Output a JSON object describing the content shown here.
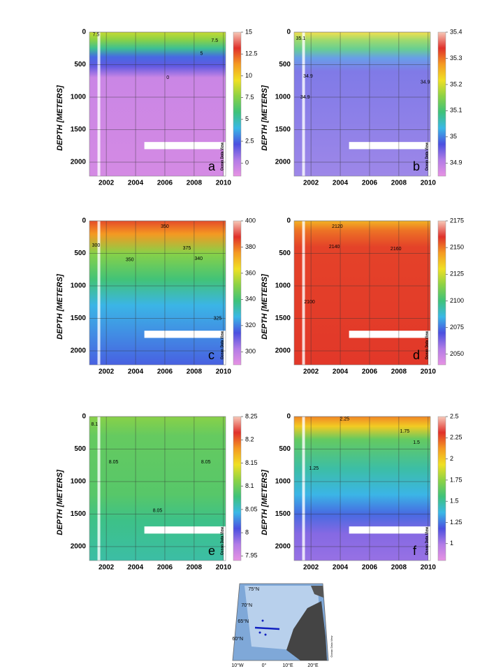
{
  "colormap": [
    "#e792e3",
    "#b27ce6",
    "#4b50e0",
    "#3ab8e6",
    "#3ec27a",
    "#8cd245",
    "#f0e024",
    "#f59a22",
    "#e0302a",
    "#f7c8b8"
  ],
  "chart_data": [
    {
      "type": "contour",
      "panel_label": "a",
      "y_label": "DEPTH [METERS]",
      "watermark": "Ocean Data View",
      "xlim": [
        2000.85,
        2010.15
      ],
      "xticks": [
        2002,
        2004,
        2006,
        2008,
        2010
      ],
      "ylim": [
        0,
        2215
      ],
      "yticks": [
        0,
        500,
        1000,
        1500,
        2000
      ],
      "grid": true,
      "clim": [
        -1.5,
        15
      ],
      "cticks": [
        0,
        2.5,
        5,
        7.5,
        10,
        12.5,
        15
      ],
      "annotations": [
        {
          "text": "7.5",
          "x": 2001.3,
          "y": 40
        },
        {
          "text": "7.5",
          "x": 2009.4,
          "y": 130
        },
        {
          "text": "5",
          "x": 2008.5,
          "y": 330
        },
        {
          "text": "0",
          "x": 2006.2,
          "y": 700
        }
      ]
    },
    {
      "type": "contour",
      "panel_label": "b",
      "y_label": "DEPTH [METERS]",
      "watermark": "Ocean Data View",
      "xlim": [
        2000.85,
        2010.15
      ],
      "xticks": [
        2002,
        2004,
        2006,
        2008,
        2010
      ],
      "ylim": [
        0,
        2215
      ],
      "yticks": [
        0,
        500,
        1000,
        1500,
        2000
      ],
      "grid": true,
      "clim": [
        34.85,
        35.4
      ],
      "cticks": [
        34.9,
        35,
        35.1,
        35.2,
        35.3,
        35.4
      ],
      "annotations": [
        {
          "text": "35.1",
          "x": 2001.3,
          "y": 100
        },
        {
          "text": "34.9",
          "x": 2001.8,
          "y": 680
        },
        {
          "text": "34.9",
          "x": 2001.6,
          "y": 1000
        },
        {
          "text": "34.9",
          "x": 2009.8,
          "y": 770
        }
      ]
    },
    {
      "type": "contour",
      "panel_label": "c",
      "y_label": "DEPTH [METERS]",
      "watermark": "Ocean Data View",
      "xlim": [
        2000.85,
        2010.15
      ],
      "xticks": [
        2002,
        2004,
        2006,
        2008,
        2010
      ],
      "ylim": [
        0,
        2215
      ],
      "yticks": [
        0,
        500,
        1000,
        1500,
        2000
      ],
      "grid": true,
      "clim": [
        290,
        400
      ],
      "cticks": [
        300,
        320,
        340,
        360,
        380,
        400
      ],
      "annotations": [
        {
          "text": "300",
          "x": 2001.3,
          "y": 380
        },
        {
          "text": "350",
          "x": 2006.0,
          "y": 90
        },
        {
          "text": "375",
          "x": 2007.5,
          "y": 420
        },
        {
          "text": "350",
          "x": 2003.6,
          "y": 600
        },
        {
          "text": "340",
          "x": 2008.3,
          "y": 580
        },
        {
          "text": "325",
          "x": 2009.6,
          "y": 1500
        }
      ]
    },
    {
      "type": "contour",
      "panel_label": "d",
      "y_label": "DEPTH [METERS]",
      "watermark": "Ocean Data View",
      "xlim": [
        2000.85,
        2010.15
      ],
      "xticks": [
        2002,
        2004,
        2006,
        2008,
        2010
      ],
      "ylim": [
        0,
        2215
      ],
      "yticks": [
        0,
        500,
        1000,
        1500,
        2000
      ],
      "grid": true,
      "clim": [
        2040,
        2175
      ],
      "cticks": [
        2050,
        2075,
        2100,
        2125,
        2150,
        2175
      ],
      "annotations": [
        {
          "text": "2120",
          "x": 2003.8,
          "y": 90
        },
        {
          "text": "2140",
          "x": 2003.6,
          "y": 400
        },
        {
          "text": "2160",
          "x": 2007.8,
          "y": 430
        },
        {
          "text": "2100",
          "x": 2001.9,
          "y": 1250
        }
      ]
    },
    {
      "type": "contour",
      "panel_label": "e",
      "y_label": "DEPTH [METERS]",
      "watermark": "Ocean Data View",
      "xlim": [
        2000.85,
        2010.15
      ],
      "xticks": [
        2002,
        2004,
        2006,
        2008,
        2010
      ],
      "ylim": [
        0,
        2215
      ],
      "yticks": [
        0,
        500,
        1000,
        1500,
        2000
      ],
      "grid": true,
      "clim": [
        7.94,
        8.25
      ],
      "cticks": [
        7.95,
        8,
        8.05,
        8.1,
        8.15,
        8.2,
        8.25
      ],
      "annotations": [
        {
          "text": "8.1",
          "x": 2001.2,
          "y": 120
        },
        {
          "text": "8.05",
          "x": 2002.5,
          "y": 700
        },
        {
          "text": "8.05",
          "x": 2005.5,
          "y": 1450
        },
        {
          "text": "8.05",
          "x": 2008.8,
          "y": 700
        }
      ]
    },
    {
      "type": "contour",
      "panel_label": "f",
      "y_label": "DEPTH [METERS]",
      "watermark": "Ocean Data View",
      "xlim": [
        2000.85,
        2010.15
      ],
      "xticks": [
        2002,
        2004,
        2006,
        2008,
        2010
      ],
      "ylim": [
        0,
        2215
      ],
      "yticks": [
        0,
        500,
        1000,
        1500,
        2000
      ],
      "grid": true,
      "clim": [
        0.8,
        2.5
      ],
      "cticks": [
        1,
        1.25,
        1.5,
        1.75,
        2,
        2.25,
        2.5
      ],
      "annotations": [
        {
          "text": "2.25",
          "x": 2004.3,
          "y": 40
        },
        {
          "text": "1.75",
          "x": 2008.4,
          "y": 230
        },
        {
          "text": "1.5",
          "x": 2009.2,
          "y": 400
        },
        {
          "text": "1.25",
          "x": 2002.2,
          "y": 800
        }
      ]
    }
  ],
  "map": {
    "lat_labels": [
      "75°N",
      "70°N",
      "65°N",
      "60°N"
    ],
    "lon_labels": [
      "10°W",
      "0°",
      "10°E",
      "20°E"
    ],
    "watermark": "Ocean Data View"
  }
}
